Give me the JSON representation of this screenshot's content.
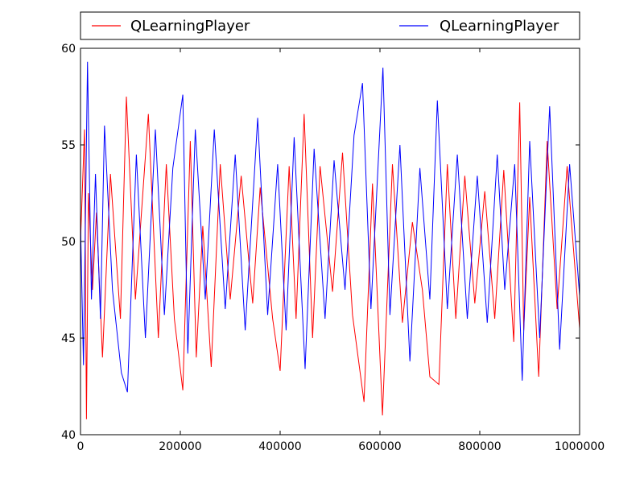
{
  "chart_data": {
    "type": "line",
    "title": "",
    "xlabel": "",
    "ylabel": "",
    "xlim": [
      0,
      1000000
    ],
    "ylim": [
      40,
      60
    ],
    "xticks": [
      0,
      200000,
      400000,
      600000,
      800000,
      1000000
    ],
    "xtick_labels": [
      "0",
      "200000",
      "400000",
      "600000",
      "800000",
      "1000000"
    ],
    "yticks": [
      40,
      45,
      50,
      55,
      60
    ],
    "ytick_labels": [
      "40",
      "45",
      "50",
      "55",
      "60"
    ],
    "grid": false,
    "legend_placement": "top, outside plot area, two columns",
    "series": [
      {
        "name": "QLearningPlayer",
        "color": "#ff0000",
        "x": [
          0,
          8000,
          12000,
          16000,
          24000,
          32000,
          44000,
          60000,
          80000,
          92000,
          110000,
          136000,
          156000,
          172000,
          188000,
          205000,
          220000,
          232000,
          245000,
          262000,
          280000,
          300000,
          322000,
          345000,
          360000,
          385000,
          400000,
          418000,
          432000,
          448000,
          465000,
          480000,
          505000,
          525000,
          545000,
          568000,
          585000,
          605000,
          625000,
          645000,
          665000,
          685000,
          700000,
          718000,
          735000,
          752000,
          770000,
          790000,
          810000,
          830000,
          848000,
          868000,
          880000,
          888000,
          900000,
          918000,
          935000,
          955000,
          975000,
          1000000
        ],
        "y": [
          50,
          55.8,
          40.8,
          52.5,
          47.5,
          51.5,
          44.0,
          53.5,
          46.0,
          57.5,
          47.0,
          56.6,
          45.0,
          54.0,
          46.0,
          42.3,
          55.2,
          44.0,
          50.8,
          43.5,
          54.0,
          47.0,
          53.4,
          46.8,
          52.8,
          46.0,
          43.3,
          53.9,
          46.0,
          56.6,
          45.0,
          53.9,
          47.4,
          54.6,
          46.2,
          41.7,
          53.0,
          41.0,
          54.0,
          45.8,
          51.0,
          47.5,
          43.0,
          42.6,
          54.0,
          46.0,
          53.4,
          46.8,
          52.6,
          46.0,
          53.7,
          44.8,
          57.2,
          45.4,
          52.3,
          43.0,
          55.2,
          46.5,
          53.9,
          45.5
        ]
      },
      {
        "name": "QLearningPlayer",
        "color": "#0000ff",
        "x": [
          0,
          6000,
          14000,
          22000,
          30000,
          40000,
          48000,
          64000,
          82000,
          94000,
          112000,
          130000,
          150000,
          168000,
          185000,
          205000,
          215000,
          230000,
          250000,
          268000,
          290000,
          310000,
          330000,
          355000,
          375000,
          395000,
          412000,
          428000,
          450000,
          468000,
          490000,
          508000,
          530000,
          548000,
          565000,
          582000,
          606000,
          620000,
          640000,
          660000,
          680000,
          700000,
          715000,
          735000,
          755000,
          775000,
          795000,
          815000,
          835000,
          850000,
          870000,
          885000,
          900000,
          920000,
          940000,
          960000,
          980000,
          1000000
        ],
        "y": [
          51.0,
          43.6,
          59.3,
          47.0,
          53.5,
          46.0,
          56.0,
          47.5,
          43.2,
          42.2,
          54.5,
          45.0,
          55.8,
          46.2,
          53.8,
          57.6,
          44.2,
          55.8,
          47.0,
          55.8,
          46.5,
          54.5,
          45.4,
          56.4,
          46.2,
          54.0,
          45.4,
          55.4,
          43.4,
          54.8,
          46.0,
          54.2,
          47.5,
          55.5,
          58.2,
          46.5,
          59.0,
          46.2,
          55.0,
          43.8,
          53.8,
          47.0,
          57.3,
          46.5,
          54.5,
          46.0,
          53.4,
          45.8,
          54.5,
          47.5,
          54.0,
          42.8,
          55.2,
          45.0,
          57.0,
          44.4,
          54.0,
          47.2
        ]
      }
    ]
  }
}
